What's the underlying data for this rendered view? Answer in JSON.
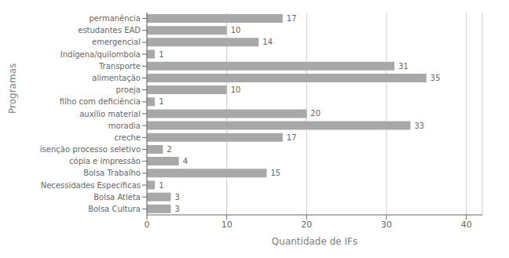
{
  "chart_data": {
    "type": "bar",
    "orientation": "horizontal",
    "categories": [
      "Bolsa Cultura",
      "Bolsa Atleta",
      "Necessidades Específicas",
      "Bolsa Trabalho",
      "cópia e impressão",
      "isenção processo seletivo",
      "creche",
      "moradia",
      "auxílio material",
      "filho com deficiência",
      "proeja",
      "alimentação",
      "Transporte",
      "Indígena/quilombola",
      "emergencial",
      "estudantes EAD",
      "permanência"
    ],
    "values": [
      3,
      3,
      1,
      15,
      4,
      2,
      17,
      33,
      20,
      1,
      10,
      35,
      31,
      1,
      14,
      10,
      17
    ],
    "color": "#a8a8a8",
    "xlabel": "Quantidade de IFs",
    "ylabel": "Programas",
    "xlim": [
      0,
      42
    ],
    "xticks": [
      0,
      10,
      20,
      30,
      40
    ],
    "grid": true,
    "data_labels": true
  }
}
